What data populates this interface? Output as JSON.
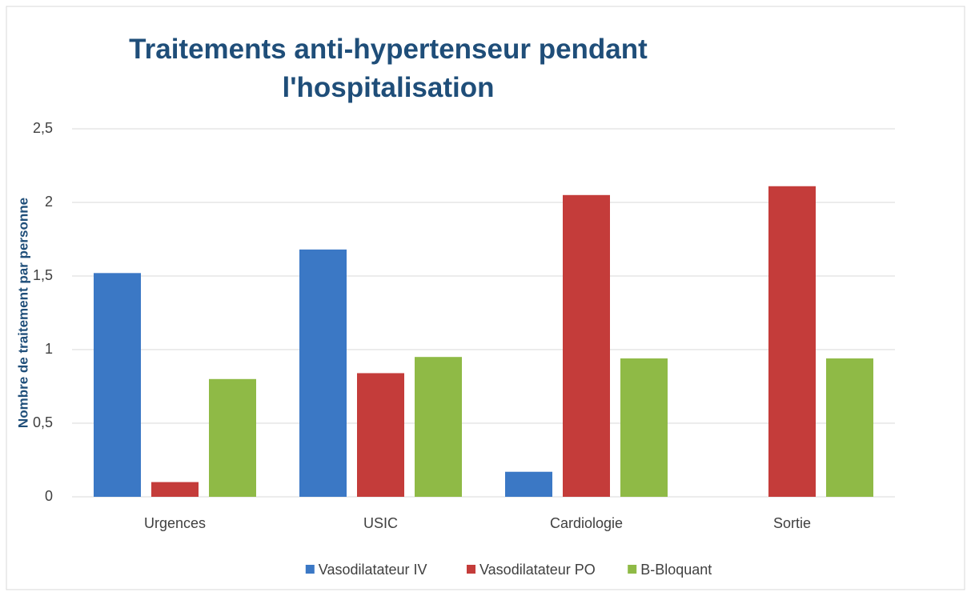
{
  "chart_data": {
    "type": "bar",
    "title": "Traitements anti-hypertenseur pendant l'hospitalisation",
    "y_label": "Nombre de traitement par personne",
    "categories": [
      "Urgences",
      "USIC",
      "Cardiologie",
      "Sortie"
    ],
    "series": [
      {
        "name": "Vasodilatateur IV",
        "color": "#3b78c5",
        "values": [
          1.52,
          1.68,
          0.17,
          0
        ]
      },
      {
        "name": "Vasodilatateur PO",
        "color": "#c43c3a",
        "values": [
          0.1,
          0.84,
          2.05,
          2.11
        ]
      },
      {
        "name": "B-Bloquant",
        "color": "#8fba46",
        "values": [
          0.8,
          0.95,
          0.94,
          0.94
        ]
      }
    ],
    "ylim": [
      0,
      2.5
    ],
    "yticks": [
      0,
      {
        "value": 0.5,
        "label": "0,5"
      },
      1,
      {
        "value": 1.5,
        "label": "1,5"
      },
      2,
      {
        "value": 2.5,
        "label": "2,5"
      }
    ],
    "grid": true,
    "legend": "bottom"
  }
}
